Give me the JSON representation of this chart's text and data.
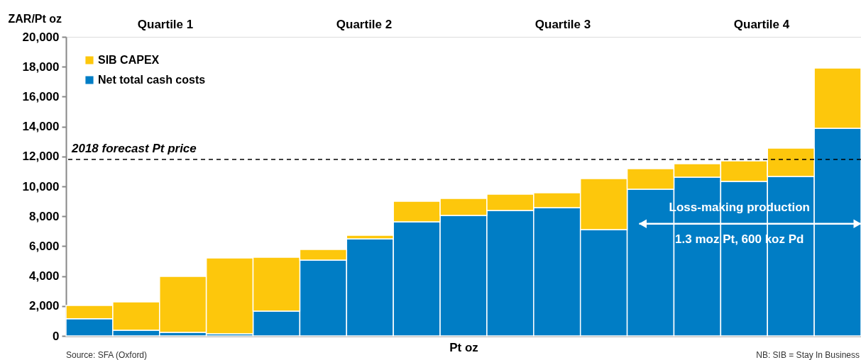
{
  "chart_data": {
    "type": "bar",
    "stacked": true,
    "xlabel": "Pt oz",
    "ylabel": "ZAR/Pt oz",
    "categories": [
      null,
      null,
      null,
      null,
      null,
      null,
      null,
      null,
      null,
      null,
      null,
      null,
      null,
      null,
      null,
      null,
      null
    ],
    "ylim": [
      0,
      20000
    ],
    "yticks": [
      {
        "value": 0,
        "label": "0"
      },
      {
        "value": 2000,
        "label": "2,000"
      },
      {
        "value": 4000,
        "label": "4,000"
      },
      {
        "value": 6000,
        "label": "6,000"
      },
      {
        "value": 8000,
        "label": "8,000"
      },
      {
        "value": 10000,
        "label": "10,000"
      },
      {
        "value": 12000,
        "label": "12,000"
      },
      {
        "value": 14000,
        "label": "14,000"
      },
      {
        "value": 16000,
        "label": "16,000"
      },
      {
        "value": 18000,
        "label": "18,000"
      },
      {
        "value": 20000,
        "label": "20,000"
      }
    ],
    "series": [
      {
        "name": "Net total cash costs",
        "color": "#007dc5",
        "values": [
          1150,
          380,
          240,
          140,
          1660,
          5070,
          6490,
          7630,
          8060,
          8390,
          8580,
          7110,
          9810,
          10620,
          10330,
          10660,
          13890
        ]
      },
      {
        "name": "SIB CAPEX",
        "color": "#fdc70c",
        "values": [
          890,
          1890,
          3740,
          5070,
          3600,
          710,
          240,
          1370,
          1130,
          1090,
          990,
          3410,
          1370,
          900,
          1380,
          1900,
          4020
        ]
      }
    ],
    "ref_lines": [
      {
        "axis": "y",
        "value": 11800,
        "label": "2018 forecast Pt price",
        "color": "#000000",
        "line_style": "dashed"
      }
    ],
    "annotations": [
      "Quartile 1",
      "Quartile 2",
      "Quartile 3",
      "Quartile 4",
      "Loss-making production",
      "1.3 moz Pt, 600 koz Pd",
      "Source: SFA (Oxford)",
      "NB: SIB = Stay In Business"
    ],
    "grid": false,
    "legend": "top left",
    "tick_labels": "y"
  }
}
